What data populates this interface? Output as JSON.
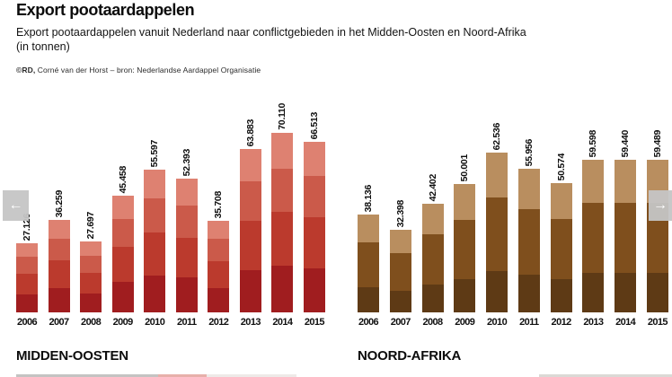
{
  "header": {
    "title": "Export pootaardappelen",
    "subtitle_line1": "Export pootaardappelen vanuit Nederland naar conflictgebieden in het Midden-Oosten en Noord-Afrika",
    "subtitle_line2": "(in tonnen)",
    "credit_prefix": "©RD,",
    "credit_rest": " Corné van der Horst – bron: Nederlandse Aardappel Organisatie"
  },
  "nav": {
    "prev_icon": "←",
    "next_icon": "→"
  },
  "colors": {
    "red_family_bottom_to_top": [
      "#a01d1f",
      "#bb3a2d",
      "#cb5a4a",
      "#de8171"
    ],
    "brown_family_bottom_to_top": [
      "#5e3a15",
      "#7f4f1d",
      "#b98e5f"
    ],
    "nav_button_bg": "#c5c5c5",
    "text": "#111111",
    "background": "#ffffff"
  },
  "chart_data": [
    {
      "type": "bar",
      "title": "MIDDEN-OOSTEN",
      "unit": "tonnen",
      "categories": [
        "2006",
        "2007",
        "2008",
        "2009",
        "2010",
        "2011",
        "2012",
        "2013",
        "2014",
        "2015"
      ],
      "values": [
        27126,
        36259,
        27697,
        45458,
        55597,
        52393,
        35708,
        63883,
        70110,
        66513
      ],
      "value_labels": [
        "27.126",
        "36.259",
        "27.697",
        "45.458",
        "55.597",
        "52.393",
        "35.708",
        "63.883",
        "70.110",
        "66.513"
      ],
      "ylim": [
        0,
        70110
      ],
      "grid": false,
      "value_label_rotation": 90,
      "segments_bottom_to_top": [
        {
          "color": "#a01d1f",
          "fraction": 0.26
        },
        {
          "color": "#bb3a2d",
          "fraction": 0.3
        },
        {
          "color": "#cb5a4a",
          "fraction": 0.24
        },
        {
          "color": "#de8171",
          "fraction": 0.2
        }
      ]
    },
    {
      "type": "bar",
      "title": "NOORD-AFRIKA",
      "unit": "tonnen",
      "categories": [
        "2006",
        "2007",
        "2008",
        "2009",
        "2010",
        "2011",
        "2012",
        "2013",
        "2014",
        "2015"
      ],
      "values": [
        38136,
        32398,
        42402,
        50001,
        62536,
        55956,
        50574,
        59598,
        59440,
        59489
      ],
      "value_labels": [
        "38.136",
        "32.398",
        "42.402",
        "50.001",
        "62.536",
        "55.956",
        "50.574",
        "59.598",
        "59.440",
        "59.489"
      ],
      "ylim": [
        0,
        70110
      ],
      "grid": false,
      "value_label_rotation": 90,
      "segments_bottom_to_top": [
        {
          "color": "#5e3a15",
          "fraction": 0.26
        },
        {
          "color": "#7f4f1d",
          "fraction": 0.46
        },
        {
          "color": "#b98e5f",
          "fraction": 0.28
        }
      ]
    }
  ]
}
